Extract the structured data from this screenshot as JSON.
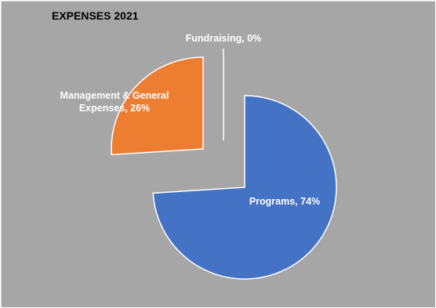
{
  "chart_data": {
    "type": "pie",
    "title": "EXPENSES 2021",
    "categories": [
      "Programs",
      "Management & General Expenses",
      "Fundraising"
    ],
    "values": [
      74,
      26,
      0
    ],
    "unit": "%",
    "exploded": true,
    "legend": "none",
    "data_labels": [
      {
        "lines": [
          "Programs, 74%"
        ]
      },
      {
        "lines": [
          "Management & General",
          "Expenses, 26%"
        ]
      },
      {
        "lines": [
          "Fundraising, 0%"
        ]
      }
    ]
  },
  "colors": {
    "background": "#a6a6a6",
    "programs": "#4472c4",
    "management": "#ed7d31",
    "fundraising": "#a5a5a5",
    "slice_border": "#ffffff",
    "label_text": "#ffffff",
    "title_text": "#000000"
  }
}
